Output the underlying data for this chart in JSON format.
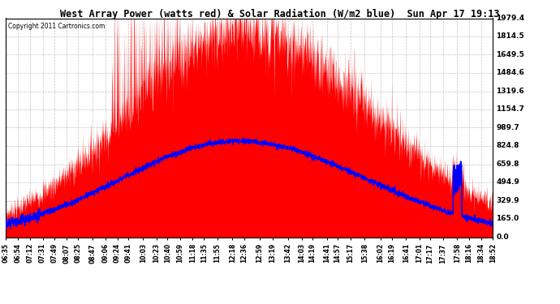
{
  "title": "West Array Power (watts red) & Solar Radiation (W/m2 blue)  Sun Apr 17 19:13",
  "copyright": "Copyright 2011 Cartronics.com",
  "background_color": "#ffffff",
  "plot_bg_color": "#ffffff",
  "ymin": 0.0,
  "ymax": 1979.4,
  "yticks": [
    0.0,
    165.0,
    329.9,
    494.9,
    659.8,
    824.8,
    989.7,
    1154.7,
    1319.6,
    1484.6,
    1649.5,
    1814.5,
    1979.4
  ],
  "red_color": "#ff0000",
  "blue_color": "#0000ff",
  "grid_color": "#aaaaaa",
  "tick_labels": [
    "06:35",
    "06:54",
    "07:12",
    "07:31",
    "07:49",
    "08:07",
    "08:25",
    "08:47",
    "09:06",
    "09:24",
    "09:41",
    "10:03",
    "10:23",
    "10:40",
    "10:59",
    "11:18",
    "11:35",
    "11:55",
    "12:18",
    "12:36",
    "12:59",
    "13:19",
    "13:42",
    "14:03",
    "14:19",
    "14:41",
    "14:57",
    "15:17",
    "15:38",
    "16:02",
    "16:19",
    "16:41",
    "17:01",
    "17:17",
    "17:37",
    "17:58",
    "18:16",
    "18:34",
    "18:52"
  ]
}
